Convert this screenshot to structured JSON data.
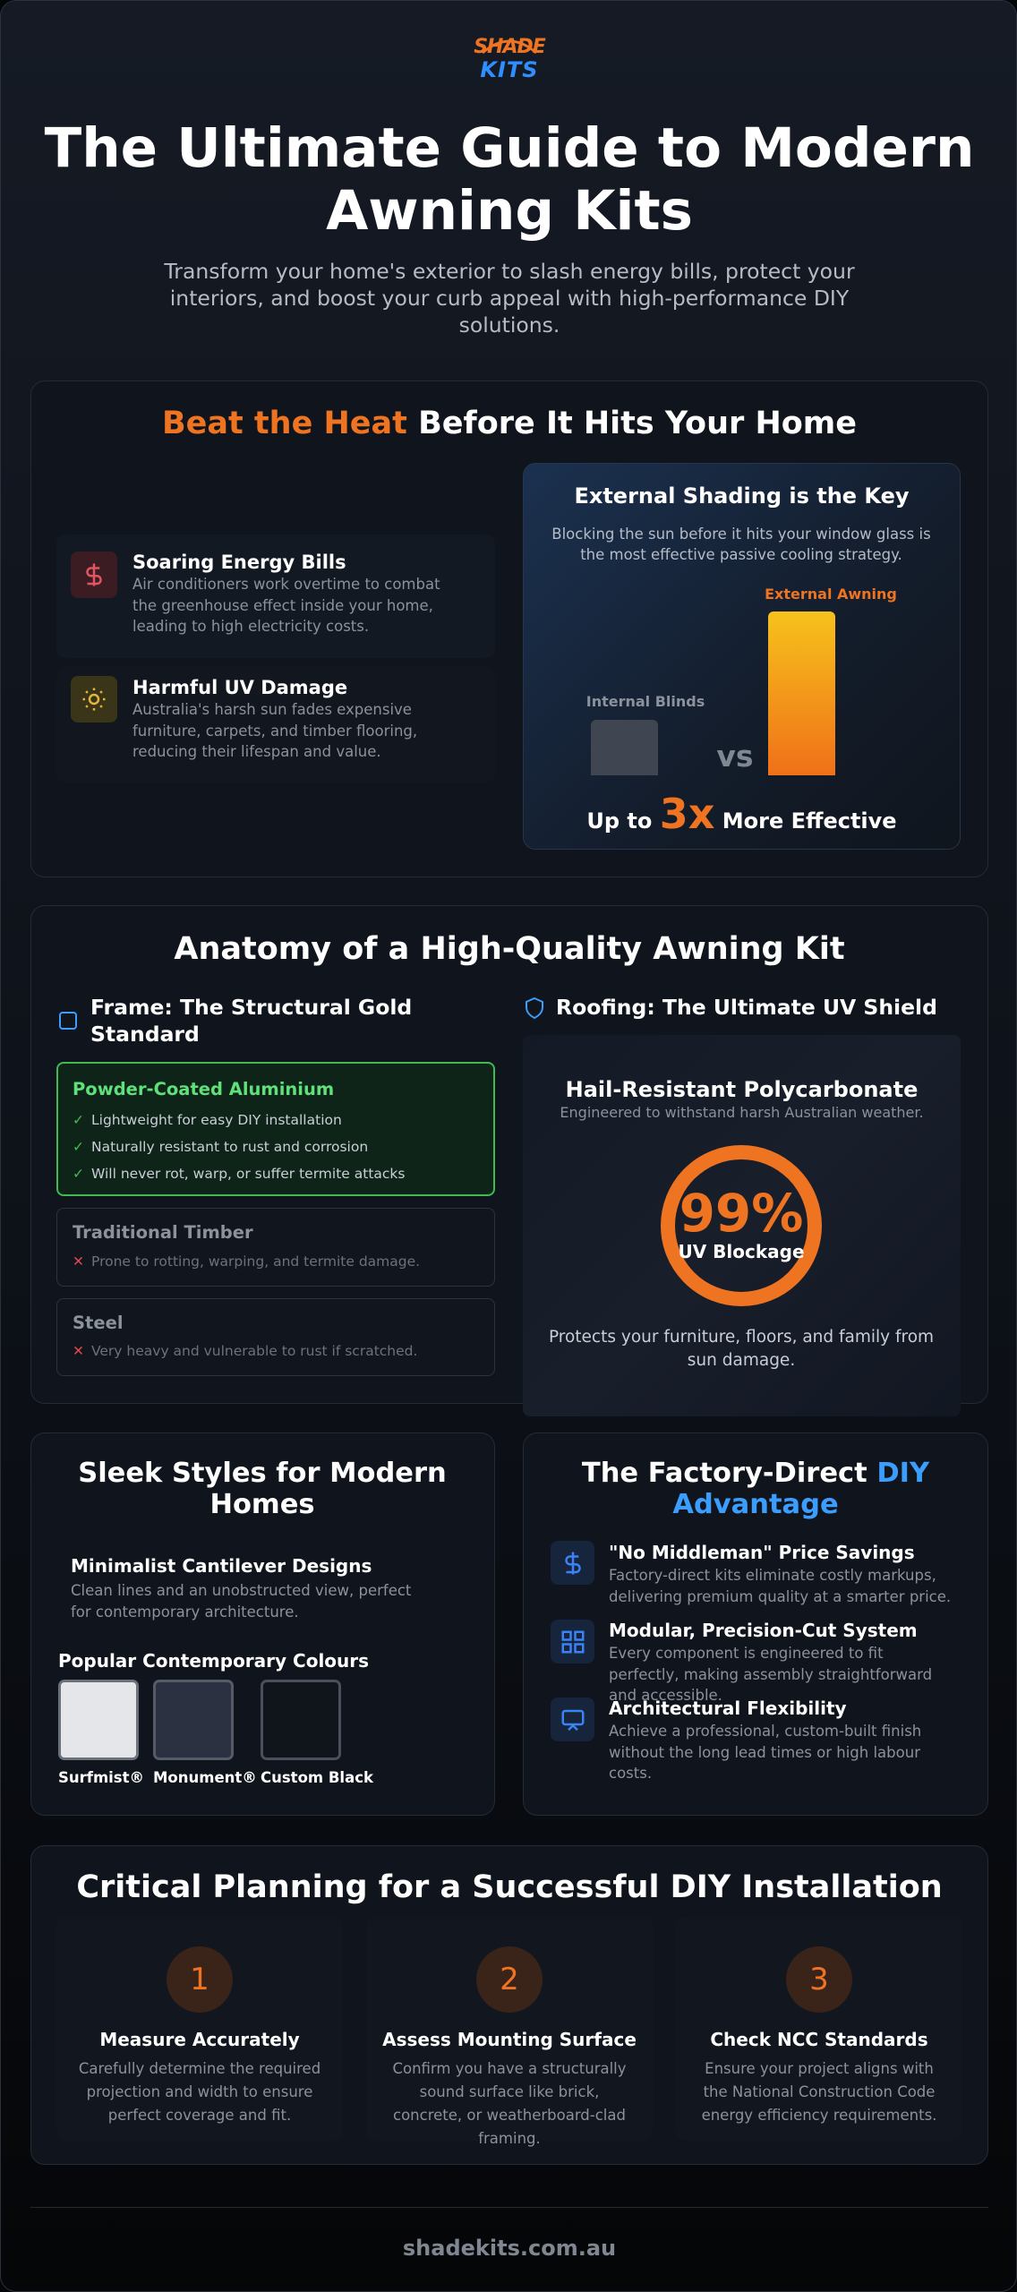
{
  "logo": {
    "top": "SHADE",
    "bottom": "KITS"
  },
  "header": {
    "title": "The Ultimate Guide to Modern Awning Kits",
    "subtitle": "Transform your home's exterior to slash energy bills, protect your interiors, and boost your curb appeal with high-performance DIY solutions."
  },
  "heat": {
    "title_highlight": "Beat the Heat",
    "title_rest": "Before It Hits Your Home",
    "problems": [
      {
        "title": "Soaring Energy Bills",
        "text": "Air conditioners work overtime to combat the greenhouse effect inside your home, leading to high electricity costs."
      },
      {
        "title": "Harmful UV Damage",
        "text": "Australia's harsh sun fades expensive furniture, carpets, and timber flooring, reducing their lifespan and value."
      }
    ],
    "shading": {
      "title": "External Shading is the Key",
      "text": "Blocking the sun before it hits your window glass is the most effective passive cooling strategy.",
      "internal_label": "Internal Blinds",
      "external_label": "External Awning",
      "vs": "vs",
      "result_prefix": "Up to",
      "result_value": "3x",
      "result_suffix": "More Effective"
    }
  },
  "anatomy": {
    "title": "Anatomy of a High-Quality Awning Kit",
    "frame": {
      "heading": "Frame: The Structural Gold Standard",
      "recommended": {
        "title": "Powder-Coated Aluminium",
        "points": [
          "Lightweight for easy DIY installation",
          "Naturally resistant to rust and corrosion",
          "Will never rot, warp, or suffer termite attacks"
        ]
      },
      "alternatives": [
        {
          "title": "Traditional Timber",
          "text": "Prone to rotting, warping, and termite damage."
        },
        {
          "title": "Steel",
          "text": "Very heavy and vulnerable to rust if scratched."
        }
      ]
    },
    "roofing": {
      "heading": "Roofing: The Ultimate UV Shield",
      "title": "Hail-Resistant Polycarbonate",
      "subtitle": "Engineered to withstand harsh Australian weather.",
      "stat": "99%",
      "stat_label": "UV Blockage",
      "text": "Protects your furniture, floors, and family from sun damage."
    }
  },
  "styles": {
    "title": "Sleek Styles for Modern Homes",
    "feature": {
      "title": "Minimalist Cantilever Designs",
      "text": "Clean lines and an unobstructed view, perfect for contemporary architecture."
    },
    "colours_title": "Popular Contemporary Colours",
    "colours": [
      "Surfmist®",
      "Monument®",
      "Custom Black"
    ]
  },
  "diy": {
    "title_rest": "The Factory-Direct",
    "title_highlight": "DIY Advantage",
    "items": [
      {
        "title": "\"No Middleman\" Price Savings",
        "text": "Factory-direct kits eliminate costly markups, delivering premium quality at a smarter price."
      },
      {
        "title": "Modular, Precision-Cut System",
        "text": "Every component is engineered to fit perfectly, making assembly straightforward and accessible."
      },
      {
        "title": "Architectural Flexibility",
        "text": "Achieve a professional, custom-built finish without the long lead times or high labour costs."
      }
    ]
  },
  "planning": {
    "title": "Critical Planning for a Successful DIY Installation",
    "steps": [
      {
        "number": 1,
        "title": "Measure Accurately",
        "text": "Carefully determine the required projection and width to ensure perfect coverage and fit."
      },
      {
        "number": 2,
        "title": "Assess Mounting Surface",
        "text": "Confirm you have a structurally sound surface like brick, concrete, or weatherboard-clad framing."
      },
      {
        "number": 3,
        "title": "Check NCC Standards",
        "text": "Ensure your project aligns with the National Construction Code energy efficiency requirements."
      }
    ]
  },
  "footer": {
    "domain": "shadekits.com.au"
  }
}
